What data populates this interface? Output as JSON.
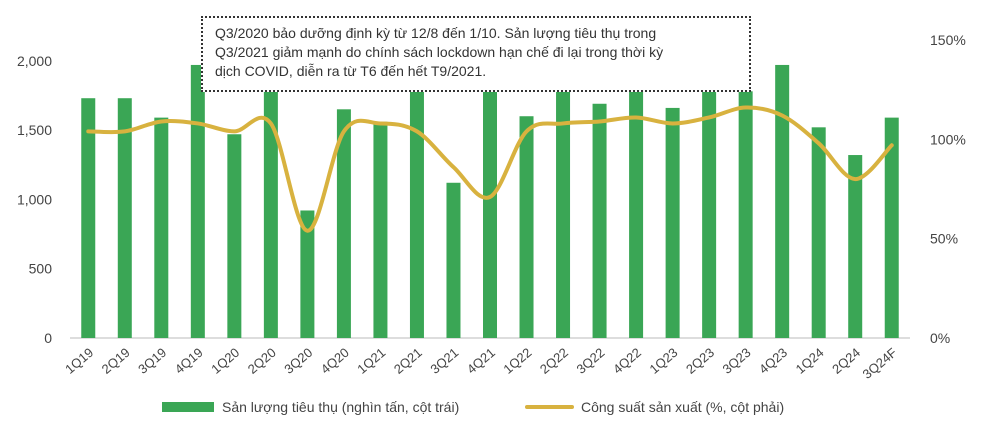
{
  "chart_data": {
    "type": "bar",
    "categories": [
      "1Q19",
      "2Q19",
      "3Q19",
      "4Q19",
      "1Q20",
      "2Q20",
      "3Q20",
      "4Q20",
      "1Q21",
      "2Q21",
      "3Q21",
      "4Q21",
      "1Q22",
      "2Q22",
      "3Q22",
      "4Q22",
      "1Q23",
      "2Q23",
      "3Q23",
      "4Q23",
      "1Q24",
      "2Q24",
      "3Q24F"
    ],
    "series": [
      {
        "name": "Sản lượng tiêu thụ (nghìn tấn, cột trái)",
        "type": "bar",
        "axis": "left",
        "color": "#3aa655",
        "values": [
          1730,
          1730,
          1590,
          1970,
          1470,
          1920,
          920,
          1650,
          1560,
          1860,
          1120,
          1890,
          1600,
          1880,
          1690,
          1850,
          1660,
          1850,
          1780,
          1970,
          1520,
          1320,
          1590
        ]
      },
      {
        "name": "Công suất sản xuất (%, cột phải)",
        "type": "line",
        "axis": "right",
        "color": "#d8b23f",
        "values": [
          104,
          104,
          109,
          108,
          104,
          108,
          54,
          104,
          108,
          104,
          86,
          71,
          104,
          108,
          109,
          111,
          108,
          111,
          116,
          112,
          98,
          80,
          97
        ]
      }
    ],
    "y_left": {
      "ticks": [
        "0",
        "500",
        "1,000",
        "1,500",
        "2,000"
      ],
      "ylim": [
        0,
        2150
      ]
    },
    "y_right": {
      "ticks": [
        "0%",
        "50%",
        "100%",
        "150%"
      ],
      "ylim": [
        0,
        150
      ]
    },
    "grid": false,
    "legend_position": "bottom",
    "annotation": [
      "Q3/2020 bảo dưỡng định kỳ từ 12/8 đến 1/10. Sản lượng tiêu thụ trong",
      "Q3/2021 giảm mạnh do chính sách lockdown hạn chế đi lại trong thời kỳ",
      "dịch COVID, diễn ra từ T6 đến hết T9/2021."
    ]
  }
}
